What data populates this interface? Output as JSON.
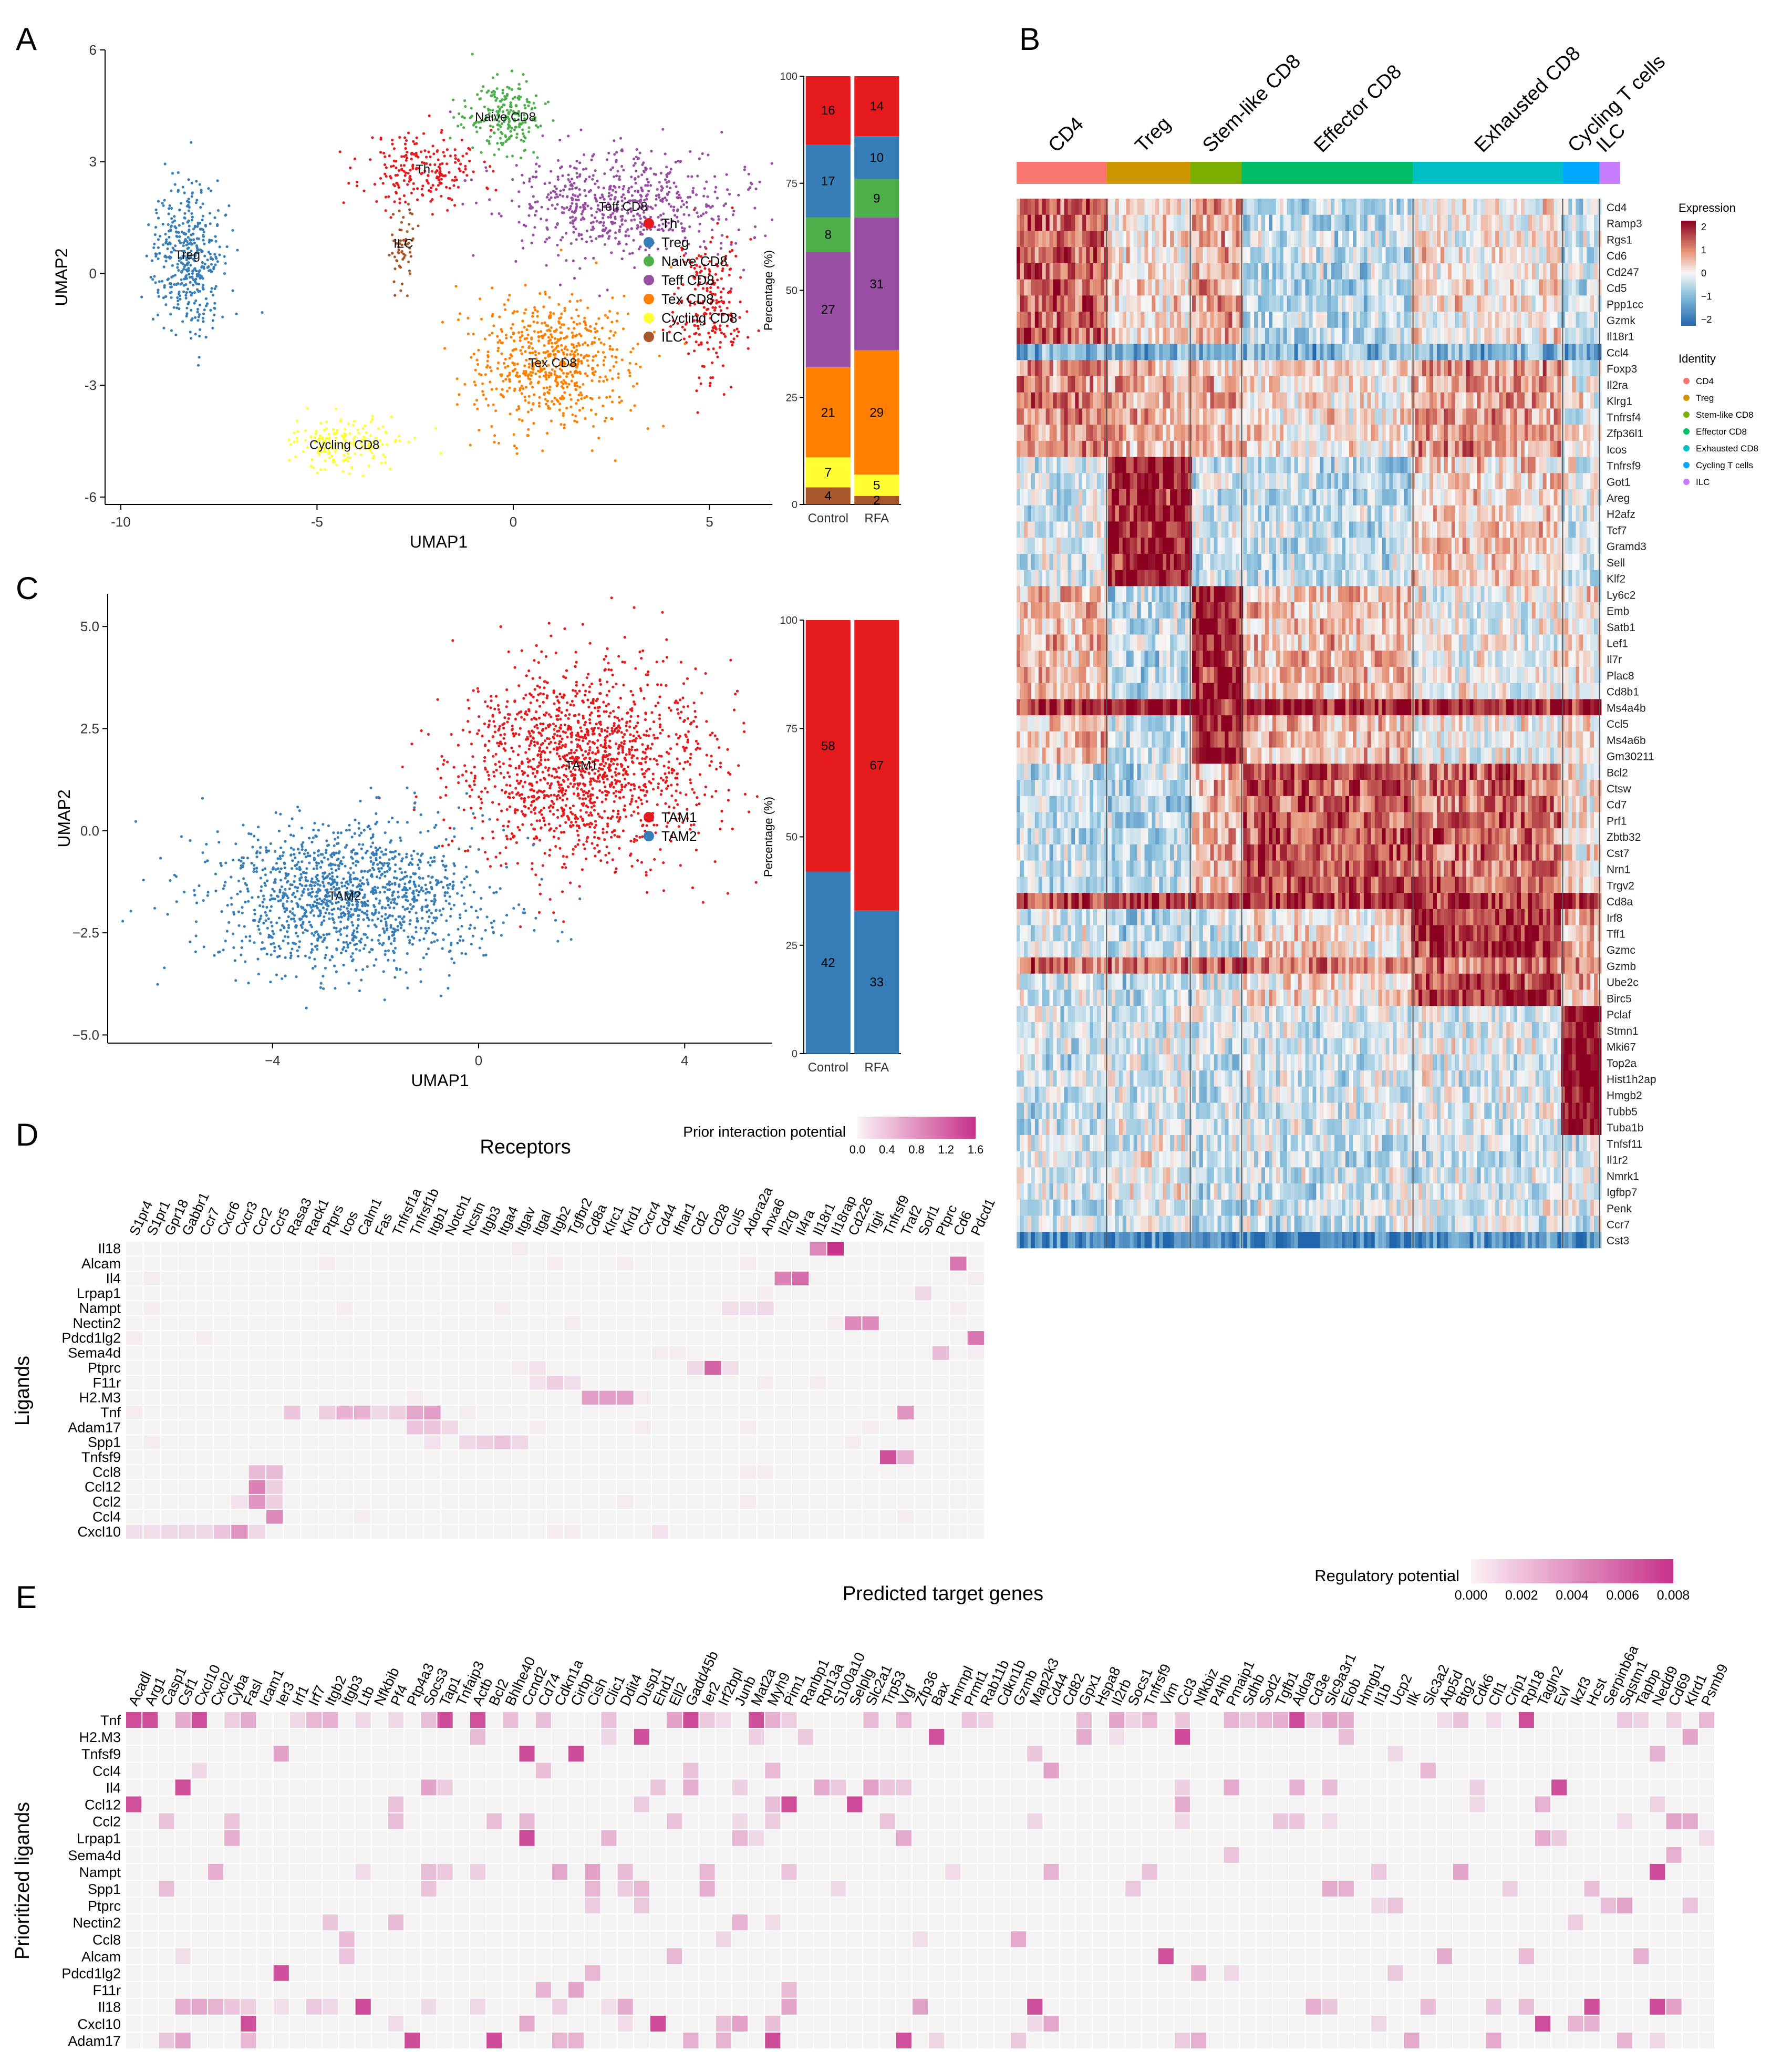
{
  "panels": {
    "A": "A",
    "B": "B",
    "C": "C",
    "D": "D",
    "E": "E"
  },
  "chart_data": [
    {
      "id": "A-umap",
      "type": "scatter",
      "xlabel": "UMAP1",
      "ylabel": "UMAP2",
      "xticks": [
        -10,
        -5,
        0,
        5
      ],
      "yticks": [
        -6,
        -3,
        0,
        3,
        6
      ],
      "xlim": [
        -10.4,
        6.6
      ],
      "ylim": [
        -6.2,
        6.0
      ],
      "legend": [
        {
          "name": "Th",
          "color": "#e41a1c"
        },
        {
          "name": "Treg",
          "color": "#377eb8"
        },
        {
          "name": "Naive CD8",
          "color": "#4daf4a"
        },
        {
          "name": "Teff CD8",
          "color": "#984ea3"
        },
        {
          "name": "Tex CD8",
          "color": "#ff7f00"
        },
        {
          "name": "Cycling CD8",
          "color": "#ffff33"
        },
        {
          "name": "ILC",
          "color": "#a65628"
        }
      ],
      "clusters": [
        {
          "name": "Th",
          "label": "Th",
          "color": "#e41a1c",
          "cx": -2.3,
          "cy": 2.8,
          "sx": 1.0,
          "sy": 0.7,
          "n": 220
        },
        {
          "name": "Th-right",
          "label": "Th",
          "color": "#e41a1c",
          "cx": 5.0,
          "cy": -0.8,
          "sx": 0.6,
          "sy": 1.3,
          "n": 220
        },
        {
          "name": "Treg",
          "label": "Treg",
          "color": "#377eb8",
          "cx": -8.3,
          "cy": 0.5,
          "sx": 0.55,
          "sy": 1.3,
          "n": 420
        },
        {
          "name": "Naive CD8",
          "label": "Naive CD8",
          "color": "#4daf4a",
          "cx": -0.2,
          "cy": 4.2,
          "sx": 0.7,
          "sy": 0.6,
          "n": 220
        },
        {
          "name": "Teff CD8",
          "label": "Teff CD8",
          "color": "#984ea3",
          "cx": 2.8,
          "cy": 1.8,
          "sx": 1.9,
          "sy": 1.0,
          "n": 650
        },
        {
          "name": "Tex CD8",
          "label": "Tex CD8",
          "color": "#ff7f00",
          "cx": 1.0,
          "cy": -2.4,
          "sx": 1.4,
          "sy": 1.2,
          "n": 650
        },
        {
          "name": "Cycling CD8",
          "label": "Cycling CD8",
          "color": "#ffff33",
          "cx": -4.3,
          "cy": -4.6,
          "sx": 0.9,
          "sy": 0.45,
          "n": 180
        },
        {
          "name": "ILC",
          "label": "ILC",
          "color": "#a65628",
          "cx": -2.8,
          "cy": 0.8,
          "sx": 0.2,
          "sy": 0.7,
          "n": 60
        }
      ]
    },
    {
      "id": "A-bar",
      "type": "bar",
      "stacked": true,
      "ylabel": "Percentage (%)",
      "categories": [
        "Control",
        "RFA"
      ],
      "yticks": [
        0,
        25,
        50,
        75,
        100
      ],
      "series": [
        {
          "name": "ILC",
          "color": "#a65628",
          "values": [
            4,
            2
          ]
        },
        {
          "name": "Cycling CD8",
          "color": "#ffff33",
          "values": [
            7,
            5
          ]
        },
        {
          "name": "Tex CD8",
          "color": "#ff7f00",
          "values": [
            21,
            29
          ]
        },
        {
          "name": "Teff CD8",
          "color": "#984ea3",
          "values": [
            27,
            31
          ]
        },
        {
          "name": "Naive CD8",
          "color": "#4daf4a",
          "values": [
            8,
            9
          ]
        },
        {
          "name": "Treg",
          "color": "#377eb8",
          "values": [
            17,
            10
          ]
        },
        {
          "name": "Th",
          "color": "#e41a1c",
          "values": [
            16,
            14
          ]
        }
      ]
    },
    {
      "id": "B-heatmap",
      "type": "heatmap",
      "groups": [
        {
          "name": "CD4",
          "color": "#f8766d",
          "share": 0.154
        },
        {
          "name": "Treg",
          "color": "#cd9600",
          "share": 0.143
        },
        {
          "name": "Stem-like CD8",
          "color": "#7cae00",
          "share": 0.088
        },
        {
          "name": "Effector CD8",
          "color": "#00be67",
          "share": 0.293
        },
        {
          "name": "Exhausted CD8",
          "color": "#00bfc4",
          "share": 0.256
        },
        {
          "name": "Cycling T cells",
          "color": "#00a9ff",
          "share": 0.063
        },
        {
          "name": "ILC",
          "color": "#c77cff",
          "share": 0.035
        }
      ],
      "genes": [
        "Cd4",
        "Ramp3",
        "Rgs1",
        "Cd6",
        "Cd247",
        "Cd5",
        "Ppp1cc",
        "Gzmk",
        "Il18r1",
        "Ccl4",
        "Foxp3",
        "Il2ra",
        "Klrg1",
        "Tnfrsf4",
        "Zfp36l1",
        "Icos",
        "Tnfrsf9",
        "Got1",
        "Areg",
        "H2afz",
        "Tcf7",
        "Gramd3",
        "Sell",
        "Klf2",
        "Ly6c2",
        "Emb",
        "Satb1",
        "Lef1",
        "Il7r",
        "Plac8",
        "Cd8b1",
        "Ms4a4b",
        "Ccl5",
        "Ms4a6b",
        "Gm30211",
        "Bcl2",
        "Ctsw",
        "Cd7",
        "Prf1",
        "Zbtb32",
        "Cst7",
        "Nrn1",
        "Trgv2",
        "Cd8a",
        "Irf8",
        "Tff1",
        "Gzmc",
        "Gzmb",
        "Ube2c",
        "Birc5",
        "Pclaf",
        "Stmn1",
        "Mki67",
        "Top2a",
        "Hist1h2ap",
        "Hmgb2",
        "Tubb5",
        "Tuba1b",
        "Tnfsf11",
        "Il1r2",
        "Nmrk1",
        "Igfbp7",
        "Penk",
        "Ccr7",
        "Cst3"
      ],
      "colorbar": {
        "title": "Expression",
        "ticks": [
          "2",
          "1",
          "0",
          "−1",
          "−2"
        ],
        "low": "#2166ac",
        "mid": "#f7f7f7",
        "high": "#8b0020"
      },
      "identity": {
        "title": "Identity",
        "items": [
          "CD4",
          "Treg",
          "Stem-like CD8",
          "Effector CD8",
          "Exhausted CD8",
          "Cycling T cells",
          "ILC"
        ]
      }
    },
    {
      "id": "C-umap",
      "type": "scatter",
      "xlabel": "UMAP1",
      "ylabel": "UMAP2",
      "xticks": [
        -4,
        0,
        4
      ],
      "yticks": [
        -5.0,
        -2.5,
        0.0,
        2.5,
        5.0
      ],
      "xtick_labels": [
        "−4",
        "0",
        "4"
      ],
      "ytick_labels": [
        "−5.0",
        "−2.5",
        "0.0",
        "2.5",
        "5.0"
      ],
      "xlim": [
        -7.2,
        5.7
      ],
      "ylim": [
        -5.2,
        5.8
      ],
      "legend": [
        {
          "name": "TAM1",
          "color": "#e41a1c"
        },
        {
          "name": "TAM2",
          "color": "#377eb8"
        }
      ],
      "clusters": [
        {
          "name": "TAM1",
          "label": "TAM1",
          "color": "#e41a1c",
          "cx": 2.0,
          "cy": 1.6,
          "sx": 1.6,
          "sy": 1.6,
          "n": 1500
        },
        {
          "name": "TAM2",
          "label": "TAM2",
          "color": "#377eb8",
          "cx": -2.6,
          "cy": -1.6,
          "sx": 1.8,
          "sy": 1.2,
          "n": 1400
        }
      ]
    },
    {
      "id": "C-bar",
      "type": "bar",
      "stacked": true,
      "ylabel": "Percentage (%)",
      "categories": [
        "Control",
        "RFA"
      ],
      "yticks": [
        0,
        25,
        50,
        75,
        100
      ],
      "series": [
        {
          "name": "TAM2",
          "color": "#377eb8",
          "values": [
            42,
            33
          ]
        },
        {
          "name": "TAM1",
          "color": "#e41a1c",
          "values": [
            58,
            67
          ]
        }
      ]
    },
    {
      "id": "D-heatmap",
      "type": "heatmap",
      "title": "Receptors",
      "ylabel": "Ligands",
      "legend_title": "Prior interaction potential",
      "legend_ticks": [
        "0.0",
        "0.4",
        "0.8",
        "1.2",
        "1.6"
      ],
      "vmax": 1.6,
      "columns": [
        "S1pr4",
        "S1pr1",
        "Gpr18",
        "Gabbr1",
        "Ccr7",
        "Cxcr6",
        "Cxcr3",
        "Ccr2",
        "Ccr5",
        "Rasa3",
        "Rack1",
        "Ptprs",
        "Icos",
        "Calm1",
        "Fas",
        "Tnfrsf1a",
        "Tnfrsf1b",
        "Itgb1",
        "Notch1",
        "Ncstn",
        "Itgb3",
        "Itga4",
        "Itgav",
        "Itgal",
        "Itgb2",
        "Tgfbr2",
        "Cd8a",
        "Klrc1",
        "Klrd1",
        "Cxcr4",
        "Cd44",
        "Ifnar1",
        "Cd2",
        "Cd28",
        "Cul5",
        "Adora2a",
        "Anxa6",
        "Il2rg",
        "Il4ra",
        "Il18r1",
        "Il18rap",
        "Cd226",
        "Tigit",
        "Tnfrsf9",
        "Traf2",
        "Sorl1",
        "Ptprc",
        "Cd6",
        "Pdcd1"
      ],
      "rows": [
        "Il18",
        "Alcam",
        "Il4",
        "Lrpap1",
        "Nampt",
        "Nectin2",
        "Pdcd1lg2",
        "Sema4d",
        "Ptprc",
        "F11r",
        "H2.M3",
        "Tnf",
        "Adam17",
        "Spp1",
        "Tnfsf9",
        "Ccl8",
        "Ccl12",
        "Ccl2",
        "Ccl4",
        "Cxcl10"
      ]
    },
    {
      "id": "E-heatmap",
      "type": "heatmap",
      "title": "Predicted target genes",
      "ylabel": "Prioritized ligands",
      "legend_title": "Regulatory potential",
      "legend_ticks": [
        "0.000",
        "0.002",
        "0.004",
        "0.006",
        "0.008"
      ],
      "vmax": 0.008,
      "columns": [
        "Acadl",
        "Arg1",
        "Casp1",
        "Csf1",
        "Cxcl10",
        "Cxcl2",
        "Cyba",
        "Fasl",
        "Icam1",
        "Ier3",
        "Irf1",
        "Irf7",
        "Itgb2",
        "Itgb3",
        "Ltb",
        "Nfkbib",
        "Pf4",
        "Ptp4a3",
        "Socs3",
        "Tap1",
        "Tnfaip3",
        "Actb",
        "Bcl2",
        "Bhlhe40",
        "Ccnd2",
        "Cd74",
        "Cdkn1a",
        "Cirbp",
        "Cish",
        "Clic1",
        "Ddit4",
        "Dusp1",
        "Ehd1",
        "Ell2",
        "Gadd45b",
        "Ier2",
        "Irf2bpl",
        "Junb",
        "Mat2a",
        "Myh9",
        "Pim1",
        "Ranbp1",
        "Rpl13a",
        "S100a10",
        "Selplg",
        "Slc2a1",
        "Trp53",
        "Vgf",
        "Zfp36",
        "Bax",
        "Hnrnpl",
        "Prmt1",
        "Rab11b",
        "Cdkn1b",
        "Gzmb",
        "Map2k3",
        "Cd44",
        "Cd82",
        "Gpx1",
        "Hspa8",
        "Il2rb",
        "Socs1",
        "Tnfrsf9",
        "Vim",
        "Ccl3",
        "Nfkbiz",
        "P4hb",
        "Pmaip1",
        "Sdhb",
        "Sod2",
        "Tgfb1",
        "Aldoa",
        "Cd3e",
        "Slc9a3r1",
        "Elob",
        "Hmgb1",
        "Il1b",
        "Ucp2",
        "Ilk",
        "Slc3a2",
        "Atp5d",
        "Btg2",
        "Cdk6",
        "Cfl1",
        "Crip1",
        "Rpl18",
        "Tagln2",
        "Evl",
        "Ikzf3",
        "Hcst",
        "Serpinb6a",
        "Sqstm1",
        "Tapbp",
        "Nedd9",
        "Cd69",
        "Klrd1",
        "Psmb9"
      ],
      "rows": [
        "Tnf",
        "H2.M3",
        "Tnfsf9",
        "Ccl4",
        "Il4",
        "Ccl12",
        "Ccl2",
        "Lrpap1",
        "Sema4d",
        "Nampt",
        "Spp1",
        "Ptprc",
        "Nectin2",
        "Ccl8",
        "Alcam",
        "Pdcd1lg2",
        "F11r",
        "Il18",
        "Cxcl10",
        "Adam17"
      ]
    }
  ]
}
